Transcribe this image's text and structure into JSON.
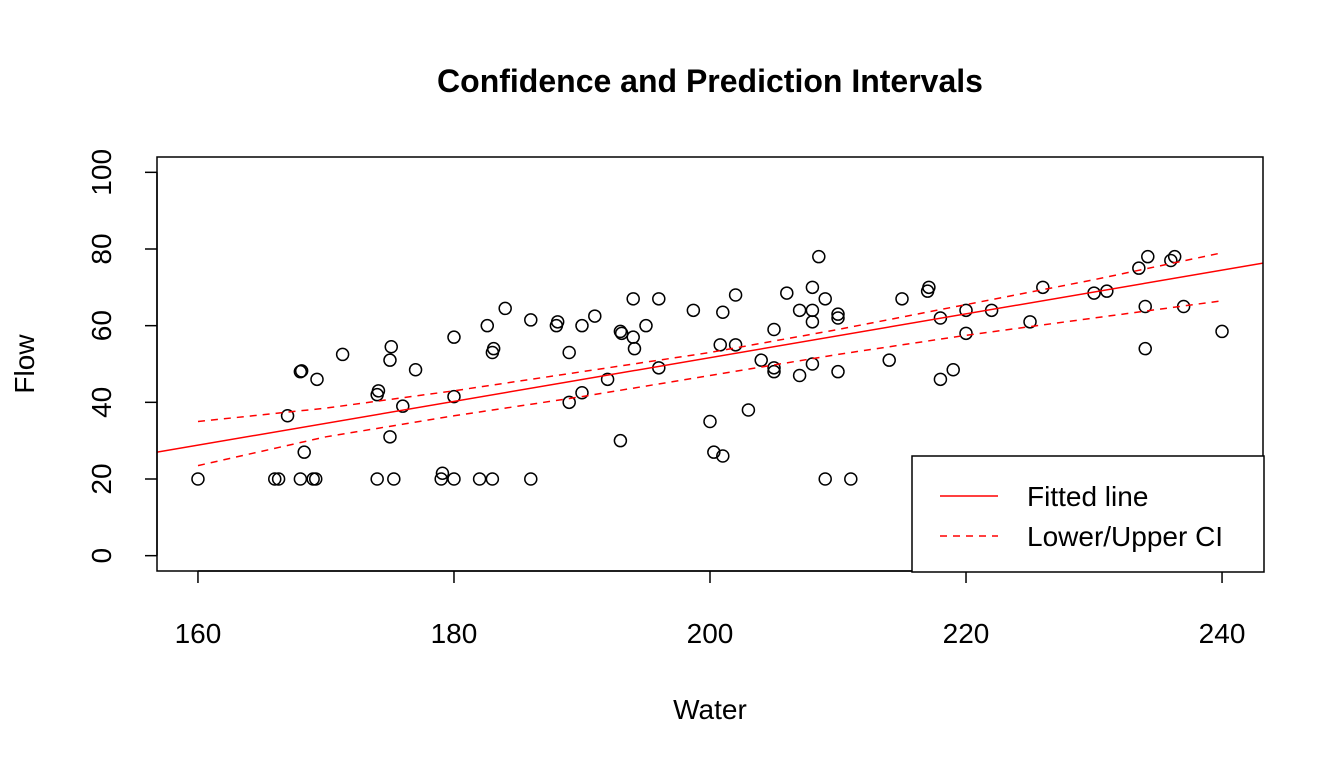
{
  "chart_data": {
    "type": "scatter",
    "title": "Confidence and Prediction Intervals",
    "xlabel": "Water",
    "ylabel": "Flow",
    "xlim": [
      156.8,
      243.2
    ],
    "ylim": [
      -4,
      104
    ],
    "x_ticks": [
      160,
      180,
      200,
      220,
      240
    ],
    "x_tick_labels": [
      "160",
      "180",
      "200",
      "220",
      "240"
    ],
    "y_ticks": [
      0,
      20,
      40,
      60,
      80,
      100
    ],
    "y_tick_labels": [
      "0",
      "20",
      "40",
      "60",
      "80",
      "100"
    ],
    "grid": false,
    "legend": {
      "position": "bottom-right",
      "entries": [
        {
          "label": "Fitted line",
          "color": "#ff0000",
          "line_style": "solid"
        },
        {
          "label": "Lower/Upper CI",
          "color": "#ff0000",
          "line_style": "dashed"
        }
      ]
    },
    "fitted_line": {
      "color": "#ff0000",
      "style": "solid",
      "intercept": -62.5,
      "slope": 0.5708
    },
    "confidence_interval": {
      "color": "#ff0000",
      "style": "dashed",
      "x": [
        160,
        170,
        180,
        190,
        200,
        210,
        220,
        230,
        240
      ],
      "lower": [
        23.5,
        31.0,
        36.5,
        41.5,
        47.0,
        52.5,
        57.5,
        62.0,
        66.5
      ],
      "upper": [
        35.0,
        38.5,
        43.0,
        48.0,
        53.0,
        59.0,
        65.5,
        72.0,
        79.0
      ]
    },
    "series": [
      {
        "marker": "open-circle",
        "color": "#000000",
        "points": [
          [
            160,
            20
          ],
          [
            166,
            20
          ],
          [
            166.3,
            20
          ],
          [
            168,
            20
          ],
          [
            169,
            20
          ],
          [
            169.2,
            20
          ],
          [
            174,
            20
          ],
          [
            175.3,
            20
          ],
          [
            179,
            20
          ],
          [
            179.1,
            21.5
          ],
          [
            180,
            20
          ],
          [
            182,
            20
          ],
          [
            183,
            20
          ],
          [
            186,
            20
          ],
          [
            209,
            20
          ],
          [
            211,
            20
          ],
          [
            167,
            36.5
          ],
          [
            168,
            48
          ],
          [
            168.1,
            48.2
          ],
          [
            168.3,
            27
          ],
          [
            169.3,
            46
          ],
          [
            171.3,
            52.5
          ],
          [
            174,
            42
          ],
          [
            174.1,
            43
          ],
          [
            175,
            31
          ],
          [
            175,
            51
          ],
          [
            175.1,
            54.5
          ],
          [
            176,
            39
          ],
          [
            177,
            48.5
          ],
          [
            180,
            41.5
          ],
          [
            180,
            57
          ],
          [
            182.6,
            60
          ],
          [
            183,
            53
          ],
          [
            183.1,
            54
          ],
          [
            184,
            64.5
          ],
          [
            186,
            61.5
          ],
          [
            188,
            60
          ],
          [
            188.1,
            61
          ],
          [
            189,
            53
          ],
          [
            189,
            40
          ],
          [
            190,
            42.5
          ],
          [
            190,
            60
          ],
          [
            191,
            62.5
          ],
          [
            192,
            46
          ],
          [
            193,
            58.5
          ],
          [
            193.1,
            58
          ],
          [
            193,
            30
          ],
          [
            194,
            57
          ],
          [
            194.1,
            54
          ],
          [
            194,
            67
          ],
          [
            195,
            60
          ],
          [
            196,
            67
          ],
          [
            196,
            49
          ],
          [
            198.7,
            64
          ],
          [
            200,
            35
          ],
          [
            200.3,
            27
          ],
          [
            200.8,
            55
          ],
          [
            201,
            26
          ],
          [
            201,
            63.5
          ],
          [
            202,
            68
          ],
          [
            202,
            55
          ],
          [
            203,
            38
          ],
          [
            204,
            51
          ],
          [
            205,
            59
          ],
          [
            205,
            48
          ],
          [
            205,
            49
          ],
          [
            206,
            68.5
          ],
          [
            207,
            64
          ],
          [
            207,
            47
          ],
          [
            208,
            70
          ],
          [
            208,
            64
          ],
          [
            208,
            61
          ],
          [
            208,
            50
          ],
          [
            208.5,
            78
          ],
          [
            209,
            67
          ],
          [
            210,
            63
          ],
          [
            210,
            62
          ],
          [
            210,
            48
          ],
          [
            214,
            51
          ],
          [
            215,
            67
          ],
          [
            217,
            69
          ],
          [
            217.1,
            70
          ],
          [
            218,
            62
          ],
          [
            218,
            46
          ],
          [
            219,
            48.5
          ],
          [
            220,
            64
          ],
          [
            220,
            58
          ],
          [
            222,
            64
          ],
          [
            225,
            61
          ],
          [
            226,
            70
          ],
          [
            230,
            68.5
          ],
          [
            231,
            69
          ],
          [
            233.5,
            75
          ],
          [
            234,
            65
          ],
          [
            234,
            54
          ],
          [
            234.2,
            78
          ],
          [
            236,
            77
          ],
          [
            236.3,
            78
          ],
          [
            237,
            65
          ],
          [
            240,
            58.5
          ]
        ]
      }
    ]
  }
}
